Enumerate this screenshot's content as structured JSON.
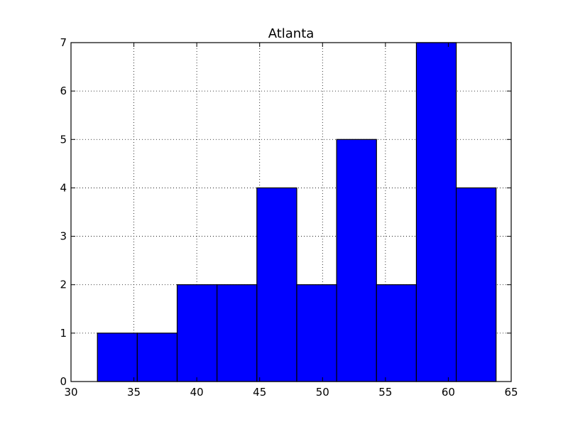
{
  "chart_data": {
    "type": "bar",
    "title": "Atlanta",
    "xlabel": "",
    "ylabel": "",
    "xlim": [
      30,
      65
    ],
    "ylim": [
      0,
      7
    ],
    "x_ticks": [
      "30",
      "35",
      "40",
      "45",
      "50",
      "55",
      "60",
      "65"
    ],
    "y_ticks": [
      "0",
      "1",
      "2",
      "3",
      "4",
      "5",
      "6",
      "7"
    ],
    "grid": true,
    "bins": [
      {
        "start": 32.1,
        "end": 35.27,
        "count": 1
      },
      {
        "start": 35.27,
        "end": 38.44,
        "count": 1
      },
      {
        "start": 38.44,
        "end": 41.61,
        "count": 2
      },
      {
        "start": 41.61,
        "end": 44.78,
        "count": 2
      },
      {
        "start": 44.78,
        "end": 47.95,
        "count": 4
      },
      {
        "start": 47.95,
        "end": 51.12,
        "count": 2
      },
      {
        "start": 51.12,
        "end": 54.29,
        "count": 5
      },
      {
        "start": 54.29,
        "end": 57.46,
        "count": 2
      },
      {
        "start": 57.46,
        "end": 60.63,
        "count": 7
      },
      {
        "start": 60.63,
        "end": 63.8,
        "count": 4
      }
    ],
    "bar_color": "#0000ff",
    "edge_color": "#000000"
  }
}
